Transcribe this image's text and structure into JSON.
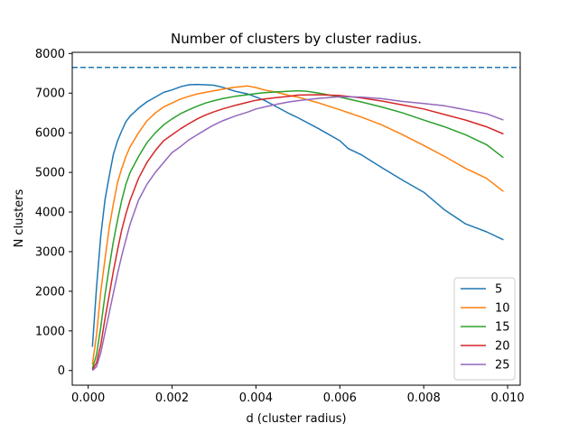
{
  "chart_data": {
    "type": "line",
    "title": "Number of clusters by cluster radius.",
    "xlabel": "d (cluster radius)",
    "ylabel": "N clusters",
    "xlim": [
      -0.00038,
      0.0103
    ],
    "ylim": [
      -370,
      8030
    ],
    "xticks": [
      0.0,
      0.002,
      0.004,
      0.006,
      0.008,
      0.01
    ],
    "xtick_labels": [
      "0.000",
      "0.002",
      "0.004",
      "0.006",
      "0.008",
      "0.010"
    ],
    "yticks": [
      0,
      1000,
      2000,
      3000,
      4000,
      5000,
      6000,
      7000,
      8000
    ],
    "ytick_labels": [
      "0",
      "1000",
      "2000",
      "3000",
      "4000",
      "5000",
      "6000",
      "7000",
      "8000"
    ],
    "grid": false,
    "legend_position": "lower-right",
    "reference_line": {
      "y": 7650,
      "style": "dashed",
      "color": "#1f77b4"
    },
    "series": [
      {
        "name": "5",
        "color": "#1f77b4",
        "x": [
          0.0001,
          0.0002,
          0.0003,
          0.0004,
          0.0005,
          0.0006,
          0.0007,
          0.0008,
          0.0009,
          0.001,
          0.0012,
          0.0014,
          0.0016,
          0.0018,
          0.002,
          0.0022,
          0.0024,
          0.0026,
          0.0028,
          0.003,
          0.0032,
          0.0035,
          0.0038,
          0.004,
          0.0042,
          0.0045,
          0.0048,
          0.005,
          0.0055,
          0.006,
          0.0062,
          0.0065,
          0.007,
          0.0075,
          0.008,
          0.0085,
          0.009,
          0.0095,
          0.0099
        ],
        "y": [
          600,
          2100,
          3400,
          4300,
          4900,
          5450,
          5800,
          6050,
          6280,
          6420,
          6620,
          6780,
          6900,
          7020,
          7080,
          7160,
          7210,
          7220,
          7210,
          7200,
          7150,
          7050,
          6980,
          6900,
          6820,
          6650,
          6480,
          6380,
          6100,
          5800,
          5600,
          5450,
          5120,
          4800,
          4500,
          4050,
          3700,
          3500,
          3300
        ]
      },
      {
        "name": "10",
        "color": "#ff7f0e",
        "x": [
          0.0001,
          0.0002,
          0.0003,
          0.0004,
          0.0005,
          0.0006,
          0.0007,
          0.0008,
          0.0009,
          0.001,
          0.0012,
          0.0014,
          0.0016,
          0.0018,
          0.002,
          0.0022,
          0.0024,
          0.0026,
          0.0028,
          0.003,
          0.0032,
          0.0035,
          0.0038,
          0.004,
          0.0042,
          0.0045,
          0.0048,
          0.005,
          0.0055,
          0.006,
          0.0065,
          0.007,
          0.0075,
          0.008,
          0.0085,
          0.009,
          0.0095,
          0.0099
        ],
        "y": [
          150,
          900,
          2000,
          2800,
          3600,
          4200,
          4750,
          5100,
          5400,
          5650,
          6000,
          6300,
          6500,
          6650,
          6750,
          6850,
          6920,
          6980,
          7020,
          7060,
          7100,
          7150,
          7180,
          7140,
          7080,
          7020,
          6940,
          6900,
          6750,
          6580,
          6400,
          6200,
          5950,
          5680,
          5400,
          5100,
          4850,
          4520
        ]
      },
      {
        "name": "15",
        "color": "#2ca02c",
        "x": [
          0.0001,
          0.0002,
          0.0003,
          0.0004,
          0.0005,
          0.0006,
          0.0007,
          0.0008,
          0.0009,
          0.001,
          0.0012,
          0.0014,
          0.0016,
          0.0018,
          0.002,
          0.0022,
          0.0024,
          0.0026,
          0.0028,
          0.003,
          0.0032,
          0.0035,
          0.0038,
          0.004,
          0.0042,
          0.0045,
          0.0048,
          0.005,
          0.0052,
          0.0055,
          0.006,
          0.0065,
          0.007,
          0.0075,
          0.008,
          0.0085,
          0.009,
          0.0095,
          0.0099
        ],
        "y": [
          50,
          400,
          1100,
          1900,
          2600,
          3250,
          3800,
          4300,
          4700,
          5000,
          5400,
          5750,
          6000,
          6200,
          6350,
          6480,
          6580,
          6670,
          6750,
          6810,
          6860,
          6920,
          6960,
          6990,
          7010,
          7030,
          7050,
          7060,
          7050,
          7000,
          6900,
          6780,
          6650,
          6500,
          6320,
          6150,
          5950,
          5700,
          5370
        ]
      },
      {
        "name": "20",
        "color": "#d62728",
        "x": [
          0.0001,
          0.0002,
          0.0003,
          0.0004,
          0.0005,
          0.0006,
          0.0007,
          0.0008,
          0.0009,
          0.001,
          0.0012,
          0.0014,
          0.0016,
          0.0018,
          0.002,
          0.0022,
          0.0024,
          0.0026,
          0.0028,
          0.003,
          0.0032,
          0.0035,
          0.0038,
          0.004,
          0.0042,
          0.0045,
          0.0048,
          0.005,
          0.0055,
          0.006,
          0.0065,
          0.007,
          0.0075,
          0.008,
          0.0085,
          0.009,
          0.0095,
          0.0099
        ],
        "y": [
          20,
          200,
          650,
          1300,
          1900,
          2500,
          3050,
          3550,
          3950,
          4300,
          4850,
          5250,
          5550,
          5800,
          5950,
          6100,
          6230,
          6350,
          6450,
          6530,
          6600,
          6690,
          6770,
          6820,
          6850,
          6890,
          6920,
          6950,
          6960,
          6940,
          6880,
          6800,
          6700,
          6600,
          6460,
          6320,
          6150,
          5970
        ]
      },
      {
        "name": "25",
        "color": "#9467bd",
        "x": [
          0.0001,
          0.0002,
          0.0003,
          0.0004,
          0.0005,
          0.0006,
          0.0007,
          0.0008,
          0.0009,
          0.001,
          0.0012,
          0.0014,
          0.0016,
          0.0018,
          0.002,
          0.0022,
          0.0024,
          0.0026,
          0.0028,
          0.003,
          0.0032,
          0.0035,
          0.0038,
          0.004,
          0.0042,
          0.0045,
          0.0048,
          0.005,
          0.0055,
          0.006,
          0.0065,
          0.007,
          0.0075,
          0.008,
          0.0085,
          0.009,
          0.0095,
          0.0099
        ],
        "y": [
          0,
          100,
          450,
          950,
          1450,
          1950,
          2450,
          2900,
          3300,
          3700,
          4300,
          4700,
          5000,
          5250,
          5500,
          5650,
          5820,
          5950,
          6080,
          6200,
          6300,
          6420,
          6520,
          6600,
          6650,
          6720,
          6780,
          6810,
          6870,
          6910,
          6900,
          6860,
          6790,
          6740,
          6680,
          6580,
          6480,
          6320
        ]
      }
    ]
  }
}
